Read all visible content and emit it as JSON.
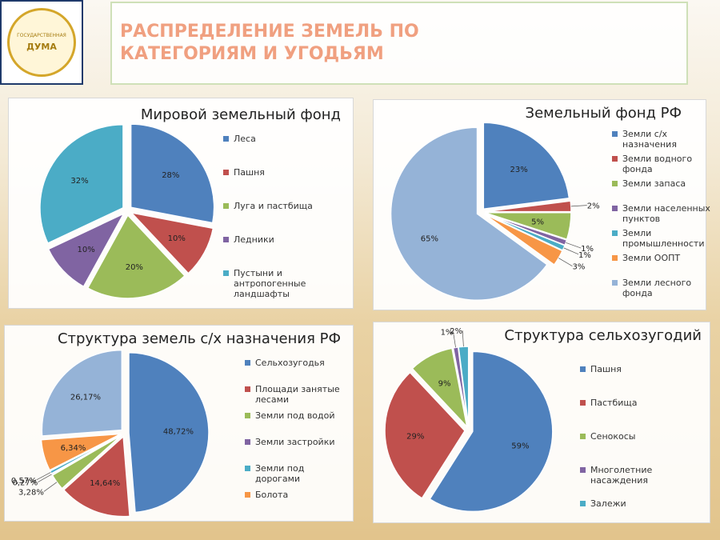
{
  "header": {
    "title": "РАСПРЕДЕЛЕНИЕ ЗЕМЕЛЬ ПО КАТЕГОРИЯМ И УГОДЬЯМ",
    "logo_top": "ГОСУДАРСТВЕННАЯ",
    "logo_bottom": "ДУМА"
  },
  "chart_data": [
    {
      "type": "pie",
      "title": "Мировой земельный фонд",
      "categories": [
        "Леса",
        "Пашня",
        "Луга и пастбища",
        "Ледники",
        "Пустыни и антропогенные ландшафты"
      ],
      "values": [
        28,
        10,
        20,
        10,
        32
      ],
      "value_labels": [
        "28%",
        "10%",
        "20%",
        "10%",
        "32%"
      ],
      "colors": [
        "#4f81bd",
        "#c0504d",
        "#9bbb59",
        "#8064a2",
        "#4bacc6"
      ]
    },
    {
      "type": "pie",
      "title": "Земельный фонд РФ",
      "categories": [
        "Земли с/х назначения",
        "Земли водного фонда",
        "Земли запаса",
        "Земли населенных пунктов",
        "Земли промышленности",
        "Земли ООПТ",
        "Земли лесного фонда"
      ],
      "values": [
        23,
        2,
        5,
        1,
        1,
        3,
        65
      ],
      "value_labels": [
        "23%",
        "2%",
        "5%",
        "1%",
        "1%",
        "3%",
        "65%"
      ],
      "colors": [
        "#4f81bd",
        "#c0504d",
        "#9bbb59",
        "#8064a2",
        "#4bacc6",
        "#f79646",
        "#95b3d7"
      ]
    },
    {
      "type": "pie",
      "title": "Структура земель с/х назначения РФ",
      "categories": [
        "Сельхозугодья",
        "Площади занятые лесами",
        "Земли под водой",
        "Земли застройки",
        "Земли под дорогами",
        "Болота",
        null
      ],
      "values": [
        48.72,
        14.64,
        3.28,
        0.27,
        0.57,
        6.34,
        26.17
      ],
      "value_labels": [
        "48,72%",
        "14,64%",
        "3,28%",
        "0,27%",
        "0,57%",
        "6,34%",
        "26,17%"
      ],
      "colors": [
        "#4f81bd",
        "#c0504d",
        "#9bbb59",
        "#8064a2",
        "#4bacc6",
        "#f79646",
        "#95b3d7"
      ]
    },
    {
      "type": "pie",
      "title": "Структура сельхозугодий",
      "categories": [
        "Пашня",
        "Пастбища",
        "Сенокосы",
        "Многолетние насаждения",
        "Залежи"
      ],
      "values": [
        59,
        29,
        9,
        1,
        2
      ],
      "value_labels": [
        "59%",
        "29%",
        "9%",
        "1%",
        "2%"
      ],
      "colors": [
        "#4f81bd",
        "#c0504d",
        "#9bbb59",
        "#8064a2",
        "#4bacc6"
      ]
    }
  ]
}
